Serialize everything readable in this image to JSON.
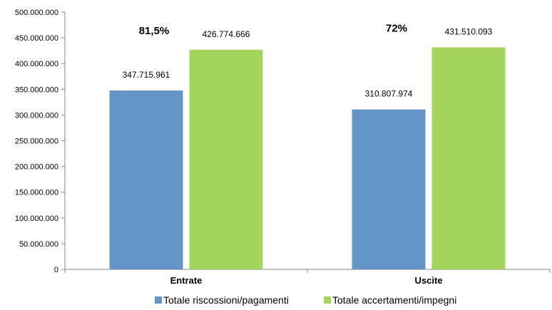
{
  "chart_data": {
    "type": "bar",
    "categories": [
      "Entrate",
      "Uscite"
    ],
    "series": [
      {
        "name": "Totale riscossioni/pagamenti",
        "values": [
          347715961,
          310807974
        ],
        "labels": [
          "347.715.961",
          "310.807.974"
        ],
        "color": "#6495c9"
      },
      {
        "name": "Totale accertamenti/impegni",
        "values": [
          426774666,
          431510093
        ],
        "labels": [
          "426.774.666",
          "431.510.093"
        ],
        "color": "#a3d45c"
      }
    ],
    "annotations": [
      "81,5%",
      "72%"
    ],
    "ylim": [
      0,
      500000000
    ],
    "yticks": [
      "0",
      "50.000.000",
      "100.000.000",
      "150.000.000",
      "200.000.000",
      "250.000.000",
      "300.000.000",
      "350.000.000",
      "400.000.000",
      "450.000.000",
      "500.000.000"
    ],
    "grid": false,
    "legend_position": "bottom"
  }
}
